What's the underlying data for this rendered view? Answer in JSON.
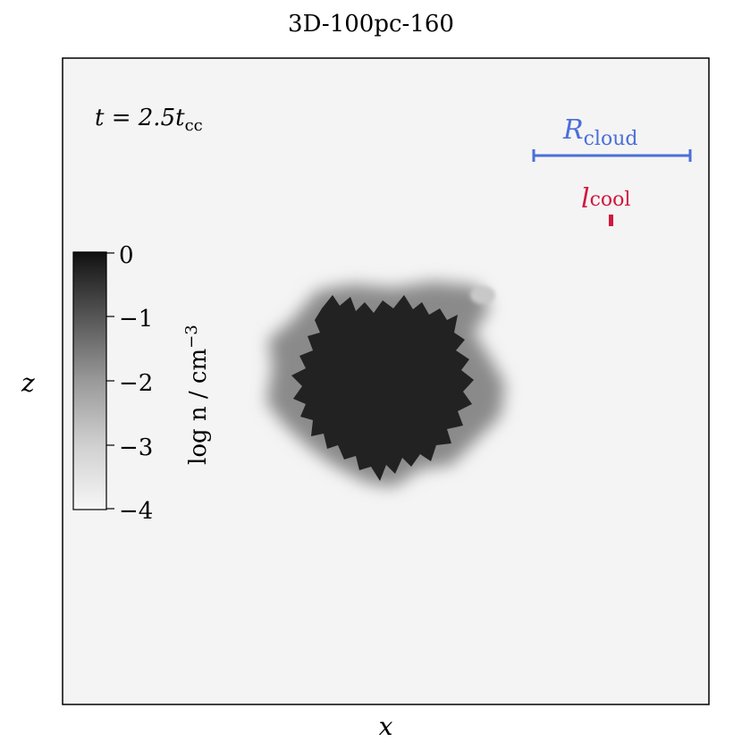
{
  "chart_data": {
    "type": "heatmap",
    "title": "3D-100pc-160",
    "xlabel": "x",
    "ylabel": "z",
    "time_annotation": "t = 2.5t",
    "time_annotation_sub": "cc",
    "scale_bars": [
      {
        "label": "R",
        "label_sub": "cloud",
        "color": "#4a6fd8"
      },
      {
        "label": "l",
        "label_sub": "cool",
        "color": "#d0183c"
      }
    ],
    "colorbar": {
      "label": "log n / cm",
      "label_sup": "−3",
      "ticks": [
        "0",
        "−1",
        "−2",
        "−3",
        "−4"
      ],
      "range": [
        -4,
        0
      ],
      "colormap": "greys"
    },
    "field": {
      "background_log_n": -3.9,
      "cloud_log_n": -0.2,
      "cloud_center": [
        0.5,
        0.45
      ],
      "description_colors": {
        "background": "#f4f4f4",
        "cloud": "#222222"
      }
    }
  }
}
